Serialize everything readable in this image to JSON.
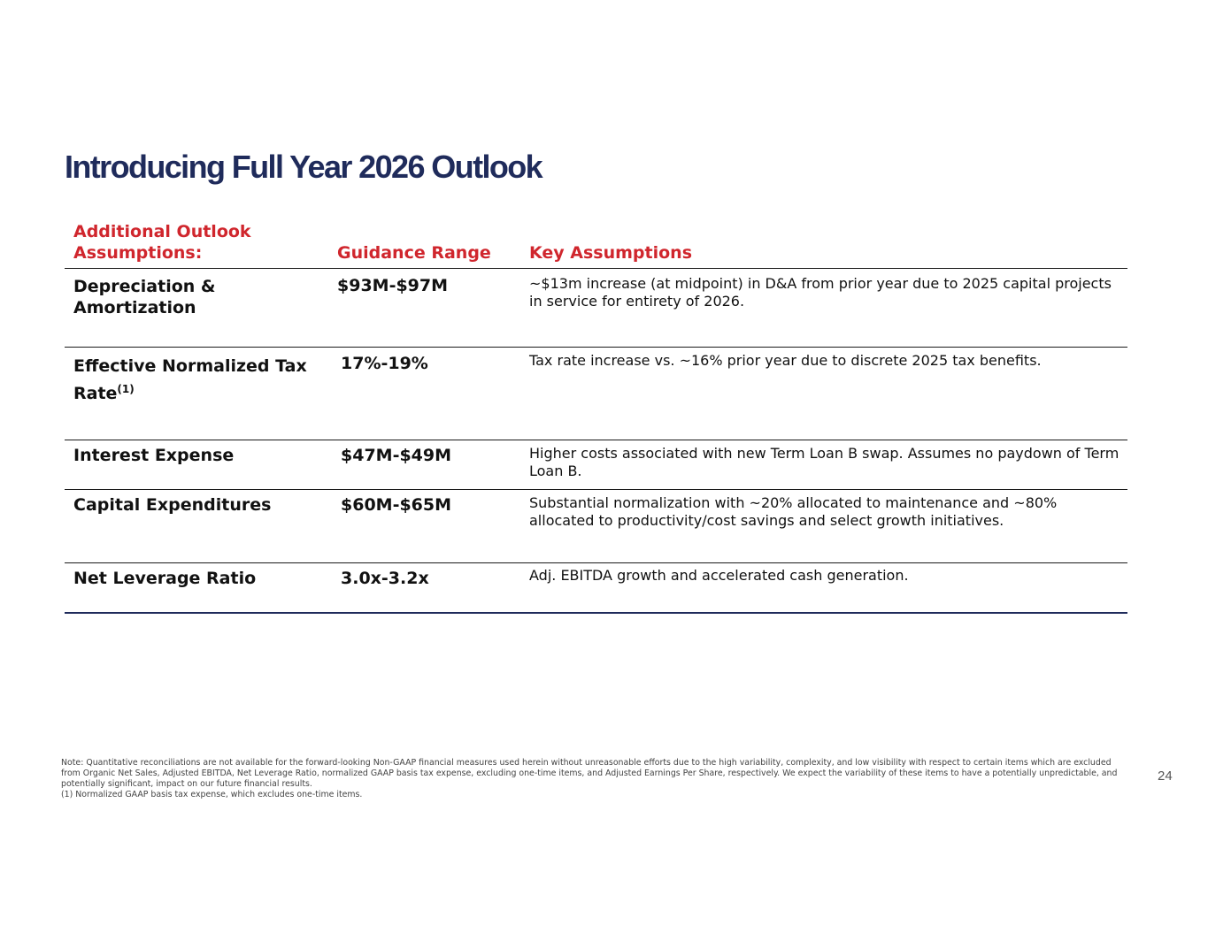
{
  "slide": {
    "title": "Introducing Full Year 2026 Outlook",
    "page_number": "24"
  },
  "colors": {
    "title": "#1f2b5b",
    "header_accent": "#d0262d",
    "rule": "#1a1a1a",
    "bottom_rule": "#1f2b5b"
  },
  "table": {
    "headers": {
      "assumption": "Additional Outlook Assumptions:",
      "guidance": "Guidance Range",
      "key_assumptions": "Key Assumptions"
    },
    "rows": [
      {
        "label": "Depreciation & Amortization",
        "guidance": "$93M-$97M",
        "assumption": "~$13m increase (at midpoint) in D&A from prior year due to 2025 capital projects in service for entirety of 2026."
      },
      {
        "label": "Effective Normalized Tax Rate",
        "footnote_ref": "(1)",
        "guidance": "17%-19%",
        "assumption": "Tax rate increase vs. ~16% prior year due to discrete 2025 tax benefits."
      },
      {
        "label": "Interest Expense",
        "guidance": "$47M-$49M",
        "assumption": "Higher costs associated with new Term Loan B swap. Assumes no paydown of Term Loan B."
      },
      {
        "label": "Capital Expenditures",
        "guidance": "$60M-$65M",
        "assumption": "Substantial normalization with ~20% allocated to maintenance and ~80% allocated to productivity/cost savings and select growth initiatives."
      },
      {
        "label": "Net Leverage Ratio",
        "guidance": "3.0x-3.2x",
        "assumption": "Adj. EBITDA growth and accelerated cash generation."
      }
    ]
  },
  "footnotes": {
    "note": "Note: Quantitative reconciliations are not available for the forward-looking Non-GAAP financial measures used herein without unreasonable efforts due to the high variability, complexity, and low visibility with respect to certain items which are excluded from Organic Net Sales, Adjusted EBITDA, Net Leverage Ratio, normalized GAAP basis tax expense, excluding one-time items, and Adjusted Earnings Per Share, respectively. We expect the variability of these items to have a potentially unpredictable, and potentially significant, impact on our future financial results.",
    "note_1": "(1) Normalized GAAP basis tax expense, which excludes one-time items."
  }
}
